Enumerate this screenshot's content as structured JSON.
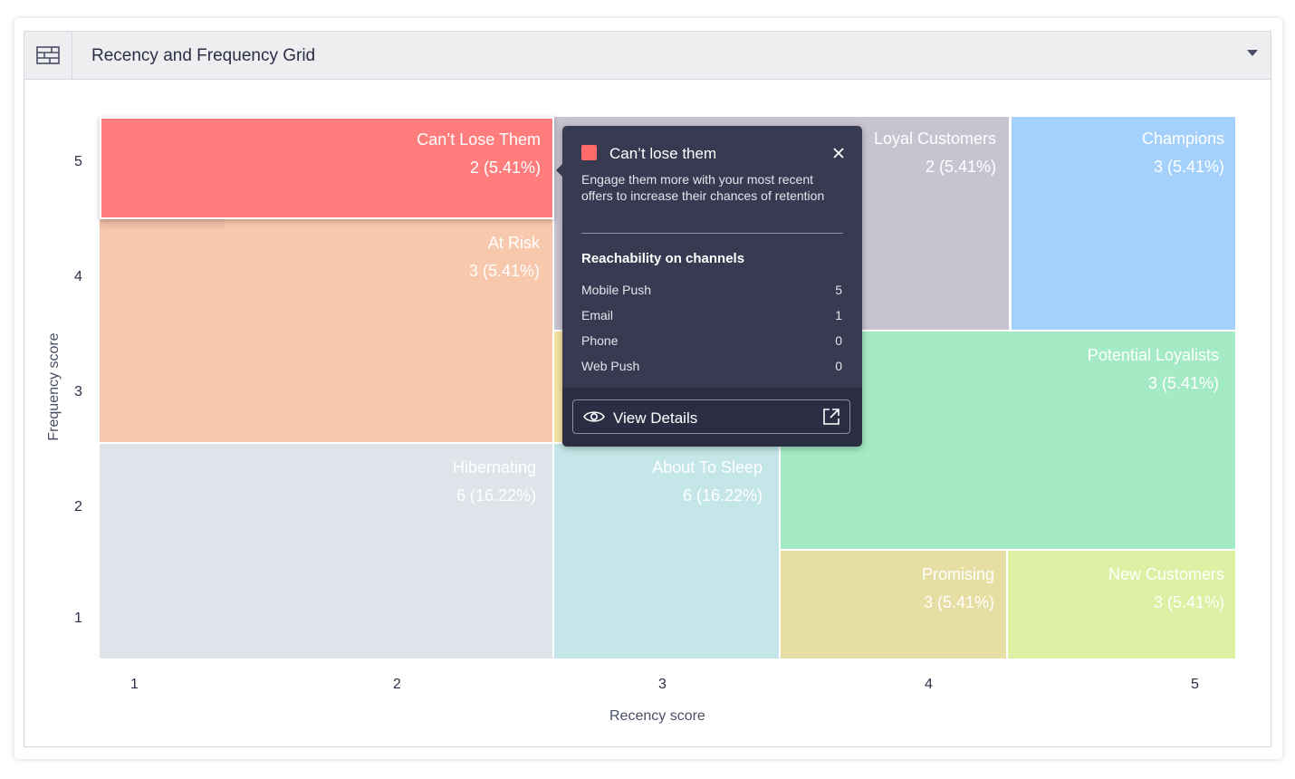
{
  "header": {
    "title": "Recency and Frequency Grid",
    "icon": "grid-layout-icon",
    "dropdown_icon": "caret-down-icon"
  },
  "chart_data": {
    "type": "treemap-grid",
    "xlabel": "Recency score",
    "ylabel": "Frequency score",
    "x_ticks": [
      "1",
      "2",
      "3",
      "4",
      "5"
    ],
    "y_ticks": [
      "5",
      "4",
      "3",
      "2",
      "1"
    ],
    "segments": [
      {
        "name": "Can't Lose Them",
        "count": 2,
        "label": "2 (5.41%)",
        "color": "#ff7d7d"
      },
      {
        "name": "At Risk",
        "count": 3,
        "label": "3 (5.41%)",
        "color": "#f8c8ad"
      },
      {
        "name": "Hibernating",
        "count": 6,
        "label": "6 (16.22%)",
        "color": "#dfe3ea"
      },
      {
        "name": "About To Sleep",
        "count": 6,
        "label": "6 (16.22%)",
        "color": "#c4e6e8"
      },
      {
        "name": "Loyal Customers",
        "count": 2,
        "label": "2 (5.41%)",
        "color": "#c7c3d0"
      },
      {
        "name": "Champions",
        "count": 3,
        "label": "3 (5.41%)",
        "color": "#a4d1fb"
      },
      {
        "name": "Potential Loyalists",
        "count": 3,
        "label": "3 (5.41%)",
        "color": "#a4eac4"
      },
      {
        "name": "Promising",
        "count": 3,
        "label": "3 (5.41%)",
        "color": "#e7dea4"
      },
      {
        "name": "New Customers",
        "count": 3,
        "label": "3 (5.41%)",
        "color": "#def0a4"
      },
      {
        "name": "",
        "count": null,
        "label": "",
        "color": "#f6e2a4"
      }
    ]
  },
  "cells": {
    "cant_lose": {
      "name": "Can’t Lose Them",
      "value": "2 (5.41%)"
    },
    "at_risk": {
      "name": "At Risk",
      "value": "3 (5.41%)"
    },
    "hibernating": {
      "name": "Hibernating",
      "value": "6 (16.22%)"
    },
    "about_to_sleep": {
      "name": "About To Sleep",
      "value": "6 (16.22%)"
    },
    "loyal": {
      "name": "Loyal Customers",
      "value": "2 (5.41%)"
    },
    "champions": {
      "name": "Champions",
      "value": "3 (5.41%)"
    },
    "potential": {
      "name": "Potential Loyalists",
      "value": "3 (5.41%)"
    },
    "promising": {
      "name": "Promising",
      "value": "3 (5.41%)"
    },
    "new_customers": {
      "name": "New Customers",
      "value": "3 (5.41%)"
    }
  },
  "tooltip": {
    "title": "Can’t lose them",
    "swatch_color": "#ff6b6b",
    "description": "Engage them more with your most recent offers to increase their chances of retention",
    "section_title": "Reachability on channels",
    "channels": [
      {
        "label": "Mobile Push",
        "value": "5"
      },
      {
        "label": "Email",
        "value": "1"
      },
      {
        "label": "Phone",
        "value": "0"
      },
      {
        "label": "Web Push",
        "value": "0"
      }
    ],
    "button_label": "View Details",
    "close_icon": "close-icon",
    "eye_icon": "eye-icon",
    "external_icon": "external-link-icon"
  }
}
